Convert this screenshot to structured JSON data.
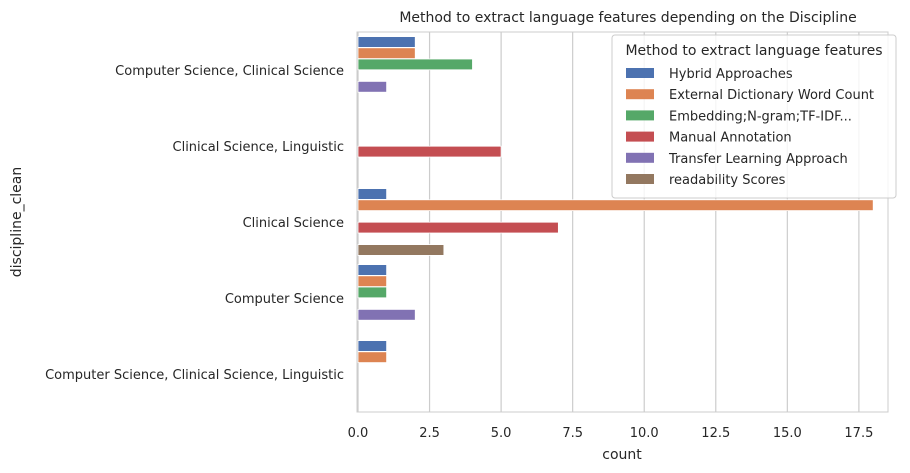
{
  "chart_data": {
    "type": "bar",
    "orientation": "horizontal",
    "title": "Method to extract language features depending on the Discipline",
    "xlabel": "count",
    "ylabel": "discipline_clean",
    "xlim": [
      0,
      18.9
    ],
    "xticks": [
      "0.0",
      "2.5",
      "5.0",
      "7.5",
      "10.0",
      "12.5",
      "15.0",
      "17.5"
    ],
    "grid": "vertical",
    "legend_position": "top-right",
    "legend_title": "Method to extract language features",
    "categories": [
      "Computer Science, Clinical Science",
      "Clinical Science, Linguistic",
      "Clinical Science",
      "Computer Science",
      "Computer Science, Clinical Science, Linguistic"
    ],
    "series": [
      {
        "name": "Hybrid Approaches",
        "color": "#4c72b0",
        "values": [
          2,
          0,
          1,
          1,
          1
        ]
      },
      {
        "name": "External Dictionary Word Count",
        "color": "#dd8452",
        "values": [
          2,
          0,
          18,
          1,
          1
        ]
      },
      {
        "name": "Embedding;N-gram;TF-IDF...",
        "color": "#55a868",
        "values": [
          4,
          0,
          0,
          1,
          0
        ]
      },
      {
        "name": "Manual Annotation",
        "color": "#c44e52",
        "values": [
          0,
          5,
          7,
          0,
          0
        ]
      },
      {
        "name": "Transfer Learning Approach",
        "color": "#8172b3",
        "values": [
          1,
          0,
          0,
          2,
          0
        ]
      },
      {
        "name": "readability Scores",
        "color": "#937860",
        "values": [
          0,
          0,
          3,
          0,
          0
        ]
      }
    ]
  }
}
